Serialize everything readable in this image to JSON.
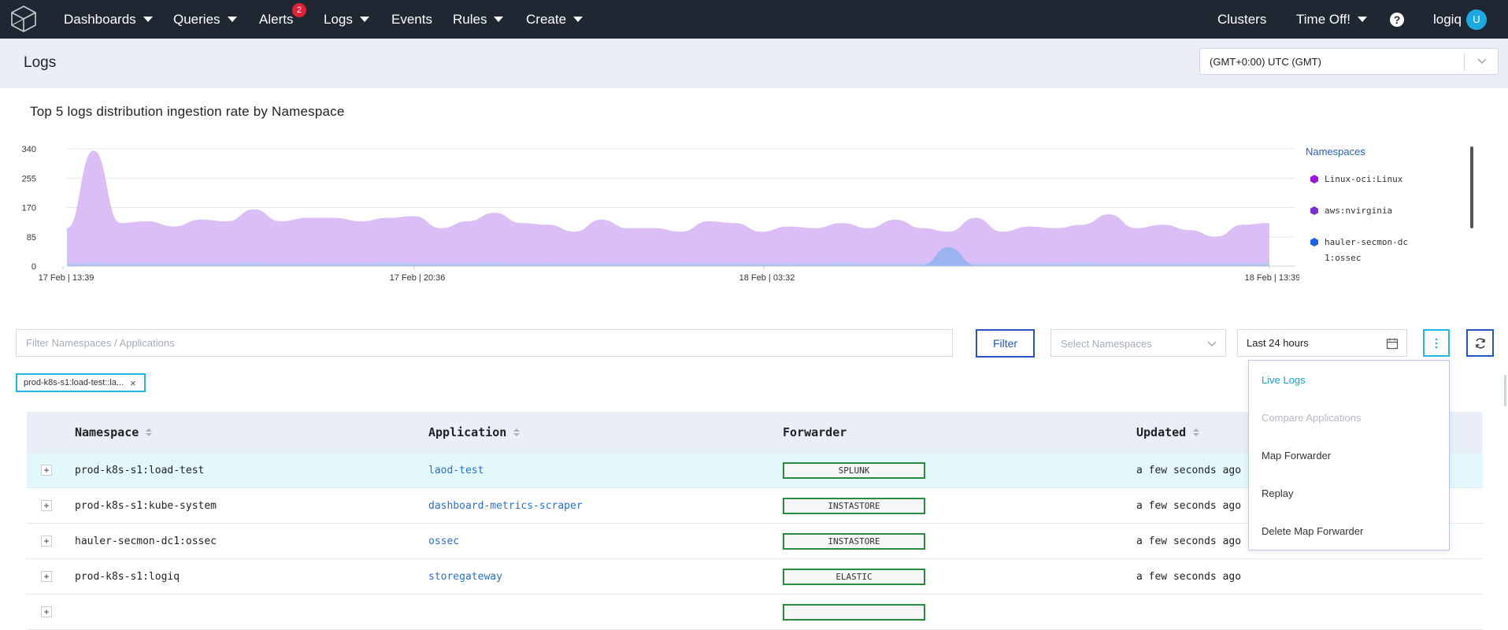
{
  "nav": {
    "items": [
      {
        "label": "Dashboards",
        "dropdown": true
      },
      {
        "label": "Queries",
        "dropdown": true
      },
      {
        "label": "Alerts",
        "badge": "2"
      },
      {
        "label": "Logs",
        "dropdown": true
      },
      {
        "label": "Events"
      },
      {
        "label": "Rules",
        "dropdown": true
      },
      {
        "label": "Create",
        "dropdown": true
      }
    ],
    "right": {
      "clusters": "Clusters",
      "time_off": "Time Off!",
      "help": "?",
      "user": "logiq",
      "avatar": "U"
    }
  },
  "header": {
    "title": "Logs",
    "timezone": "(GMT+0:00) UTC (GMT)"
  },
  "chart": {
    "title": "Top 5 logs distribution ingestion rate by Namespace",
    "legend_title": "Namespaces",
    "legend": [
      {
        "name": "Linux-oci:Linux",
        "color": "#9d17e0"
      },
      {
        "name": "aws:nvirginia",
        "color": "#7d2fd6"
      },
      {
        "name": "hauler-secmon-dc1:ossec",
        "color": "#1c62e8"
      }
    ]
  },
  "chart_data": {
    "type": "area",
    "title": "Top 5 logs distribution ingestion rate by Namespace",
    "xlabel": "",
    "ylabel": "",
    "ylim": [
      0,
      340
    ],
    "y_ticks": [
      0,
      85,
      170,
      255,
      340
    ],
    "x_ticks": [
      "17 Feb | 13:39",
      "17 Feb | 20:36",
      "18 Feb | 03:32",
      "18 Feb | 13:39"
    ],
    "grid": true,
    "legend_position": "right",
    "series": [
      {
        "name": "Linux-oci:Linux",
        "color": "#d5b3f5",
        "values": [
          110,
          335,
          125,
          130,
          115,
          135,
          130,
          165,
          130,
          140,
          140,
          130,
          140,
          145,
          110,
          130,
          155,
          125,
          120,
          100,
          135,
          110,
          110,
          100,
          130,
          125,
          100,
          115,
          110,
          125,
          110,
          135,
          110,
          100,
          140,
          100,
          115,
          110,
          120,
          150,
          110,
          120,
          105,
          85,
          120,
          125
        ]
      },
      {
        "name": "aws:nvirginia",
        "color": "#bcc8f3",
        "values": [
          10,
          12,
          10,
          11,
          10,
          11,
          10,
          12,
          10,
          11,
          10,
          11,
          12,
          11,
          10,
          11,
          12,
          10,
          11,
          10,
          11,
          10,
          10,
          11,
          10,
          11,
          10,
          11,
          10,
          12,
          10,
          11,
          10,
          11,
          10,
          11,
          10,
          11,
          12,
          10,
          11,
          10,
          11,
          10,
          11,
          10
        ]
      },
      {
        "name": "hauler-secmon-dc1:ossec",
        "color": "#8fb3ee",
        "values": [
          3,
          3,
          3,
          3,
          3,
          3,
          3,
          3,
          3,
          3,
          3,
          3,
          3,
          3,
          3,
          3,
          3,
          3,
          3,
          3,
          3,
          3,
          3,
          3,
          3,
          3,
          3,
          3,
          3,
          3,
          3,
          3,
          3,
          55,
          3,
          3,
          3,
          3,
          3,
          3,
          3,
          3,
          3,
          3,
          3,
          3
        ]
      }
    ]
  },
  "filters": {
    "search_placeholder": "Filter Namespaces / Applications",
    "filter_button": "Filter",
    "namespace_placeholder": "Select Namespaces",
    "time_range": "Last 24 hours",
    "more_icon": "vertical-dots-icon",
    "refresh_icon": "refresh-icon",
    "active_tag": "prod-k8s-s1:load-test::la...",
    "tag_close": "×"
  },
  "menu": {
    "items": [
      {
        "label": "Live Logs",
        "state": "active"
      },
      {
        "label": "Compare Applications",
        "state": "disabled"
      },
      {
        "label": "Map Forwarder",
        "state": "normal"
      },
      {
        "label": "Replay",
        "state": "normal"
      },
      {
        "label": "Delete Map Forwarder",
        "state": "normal"
      }
    ]
  },
  "table": {
    "columns": [
      "Namespace",
      "Application",
      "Forwarder",
      "Updated"
    ],
    "rows": [
      {
        "namespace": "prod-k8s-s1:load-test",
        "application": "laod-test",
        "forwarder": "SPLUNK",
        "updated": "a few seconds ago",
        "selected": true
      },
      {
        "namespace": "prod-k8s-s1:kube-system",
        "application": "dashboard-metrics-scraper",
        "forwarder": "INSTASTORE",
        "updated": "a few seconds ago"
      },
      {
        "namespace": "hauler-secmon-dc1:ossec",
        "application": "ossec",
        "forwarder": "INSTASTORE",
        "updated": "a few seconds ago"
      },
      {
        "namespace": "prod-k8s-s1:logiq",
        "application": "storegateway",
        "forwarder": "ELASTIC",
        "updated": "a few seconds ago"
      }
    ]
  }
}
